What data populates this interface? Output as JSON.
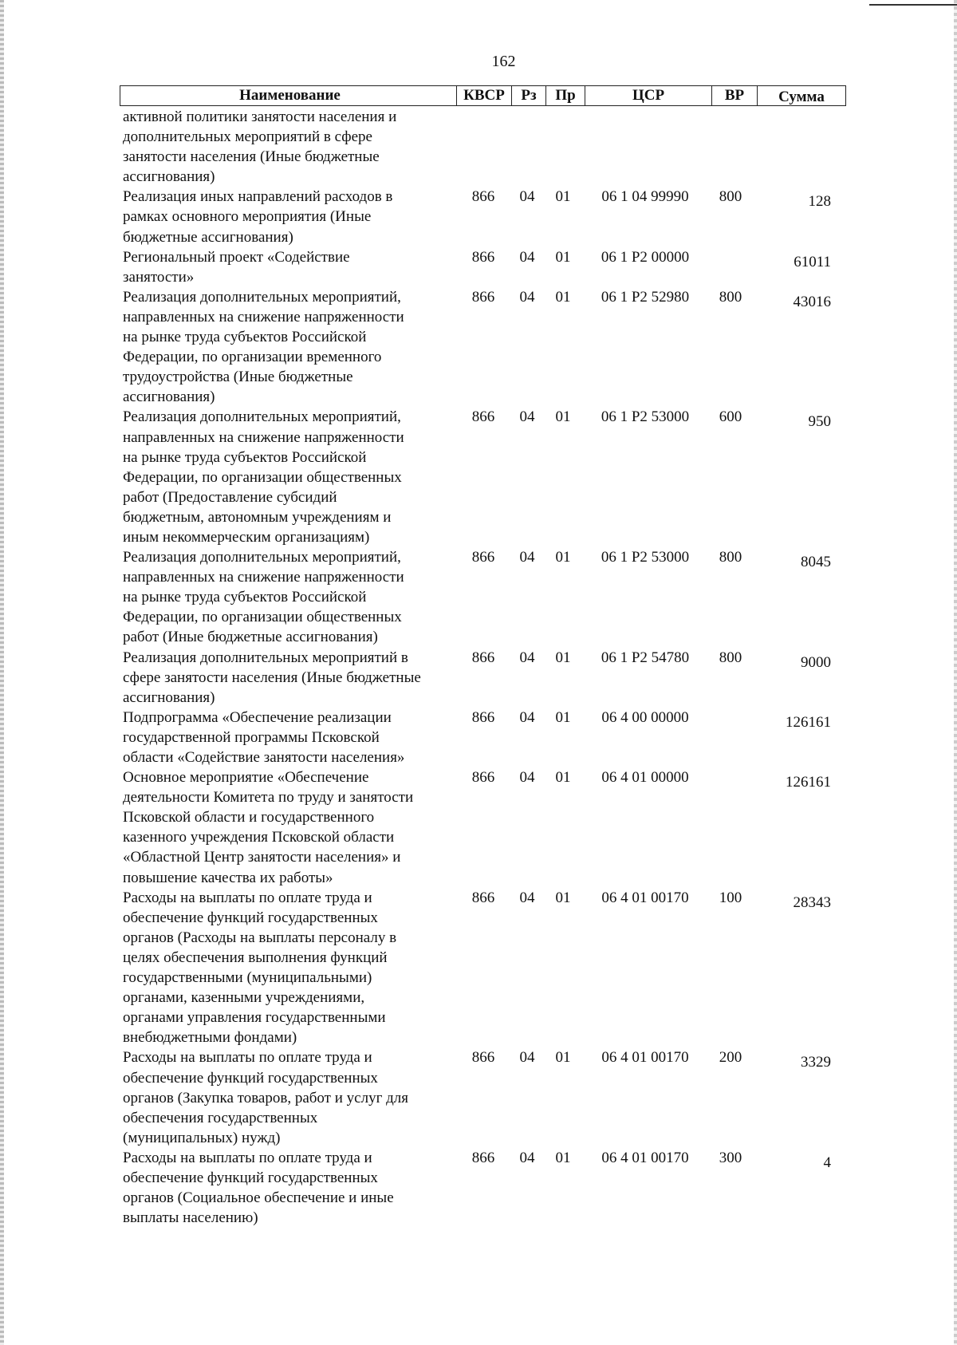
{
  "page_number": "162",
  "table": {
    "headers": [
      "Наименование",
      "КВСР",
      "Рз",
      "Пр",
      "ЦСР",
      "ВР",
      "Сумма"
    ],
    "rows": [
      {
        "name": [
          "активной политики занятости населения и",
          "дополнительных мероприятий в сфере",
          "занятости населения (Иные бюджетные",
          "ассигнования)"
        ],
        "kvsr": "",
        "rz": "",
        "pr": "",
        "csr": "",
        "vr": "",
        "sum": ""
      },
      {
        "name": [
          "Реализация иных направлений расходов в",
          "рамках основного мероприятия (Иные",
          "бюджетные ассигнования)"
        ],
        "kvsr": "866",
        "rz": "04",
        "pr": "01",
        "csr": "06 1 04 99990",
        "vr": "800",
        "sum": "128"
      },
      {
        "name": [
          "Региональный проект «Содействие",
          "занятости»"
        ],
        "kvsr": "866",
        "rz": "04",
        "pr": "01",
        "csr": "06 1 P2 00000",
        "vr": "",
        "sum": "61011"
      },
      {
        "name": [
          "Реализация дополнительных мероприятий,",
          "направленных на снижение напряженности",
          "на рынке труда субъектов Российской",
          "Федерации, по организации временного",
          "трудоустройства  (Иные бюджетные",
          "ассигнования)"
        ],
        "kvsr": "866",
        "rz": "04",
        "pr": "01",
        "csr": "06 1 P2 52980",
        "vr": "800",
        "sum": "43016"
      },
      {
        "name": [
          "Реализация дополнительных мероприятий,",
          "направленных на снижение напряженности",
          "на рынке труда субъектов Российской",
          "Федерации, по организации общественных",
          "работ (Предоставление субсидий",
          "бюджетным, автономным учреждениям и",
          "иным некоммерческим организациям)"
        ],
        "kvsr": "866",
        "rz": "04",
        "pr": "01",
        "csr": "06 1 P2 53000",
        "vr": "600",
        "sum": "950"
      },
      {
        "name": [
          "Реализация дополнительных мероприятий,",
          "направленных на снижение напряженности",
          "на рынке труда субъектов Российской",
          "Федерации, по организации общественных",
          "работ (Иные бюджетные ассигнования)"
        ],
        "kvsr": "866",
        "rz": "04",
        "pr": "01",
        "csr": "06 1 P2 53000",
        "vr": "800",
        "sum": "8045"
      },
      {
        "name": [
          "Реализация дополнительных мероприятий в",
          "сфере занятости населения (Иные бюджетные",
          "ассигнования)"
        ],
        "kvsr": "866",
        "rz": "04",
        "pr": "01",
        "csr": "06 1 P2 54780",
        "vr": "800",
        "sum": "9000"
      },
      {
        "name": [
          "Подпрограмма «Обеспечение реализации",
          "государственной программы Псковской",
          "области «Содействие занятости населения»"
        ],
        "kvsr": "866",
        "rz": "04",
        "pr": "01",
        "csr": "06 4 00 00000",
        "vr": "",
        "sum": "126161"
      },
      {
        "name": [
          "Основное мероприятие «Обеспечение",
          "деятельности Комитета по труду и занятости",
          "Псковской области и государственного",
          "казенного учреждения Псковской области",
          "«Областной Центр занятости населения» и",
          "повышение качества их работы»"
        ],
        "kvsr": "866",
        "rz": "04",
        "pr": "01",
        "csr": "06 4 01 00000",
        "vr": "",
        "sum": "126161"
      },
      {
        "name": [
          "Расходы на выплаты по оплате труда и",
          "обеспечение функций государственных",
          "органов (Расходы на выплаты персоналу в",
          "целях обеспечения выполнения функций",
          "государственными (муниципальными)",
          "органами, казенными учреждениями,",
          "органами управления государственными",
          "внебюджетными фондами)"
        ],
        "kvsr": "866",
        "rz": "04",
        "pr": "01",
        "csr": "06 4 01 00170",
        "vr": "100",
        "sum": "28343"
      },
      {
        "name": [
          "Расходы на выплаты по оплате труда и",
          "обеспечение функций государственных",
          "органов (Закупка товаров, работ и услуг для",
          "обеспечения государственных",
          "(муниципальных) нужд)"
        ],
        "kvsr": "866",
        "rz": "04",
        "pr": "01",
        "csr": "06 4 01 00170",
        "vr": "200",
        "sum": "3329"
      },
      {
        "name": [
          "Расходы на выплаты по оплате труда и",
          "обеспечение функций государственных",
          "органов (Социальное обеспечение и иные",
          "выплаты населению)"
        ],
        "kvsr": "866",
        "rz": "04",
        "pr": "01",
        "csr": "06 4 01 00170",
        "vr": "300",
        "sum": "4"
      }
    ]
  }
}
